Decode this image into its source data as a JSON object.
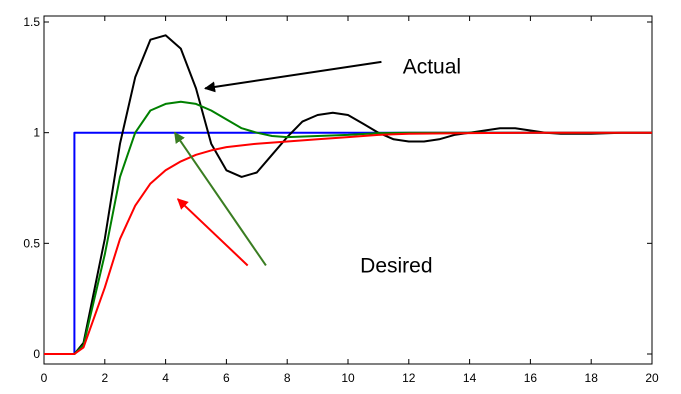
{
  "chart_data": {
    "type": "line",
    "xlim": [
      0,
      20
    ],
    "ylim": [
      0,
      1.5
    ],
    "grid": false,
    "x_ticks": [
      "0",
      "2",
      "4",
      "6",
      "8",
      "10",
      "12",
      "14",
      "16",
      "18",
      "20"
    ],
    "y_ticks": [
      "0",
      "0.5",
      "1",
      "1.5"
    ],
    "series": [
      {
        "color": "#0000ff",
        "points": [
          [
            0,
            0
          ],
          [
            1,
            0
          ],
          [
            1,
            1
          ],
          [
            20,
            1
          ]
        ]
      },
      {
        "color": "#000000",
        "points": [
          [
            0,
            0
          ],
          [
            1,
            0
          ],
          [
            1.3,
            0.05
          ],
          [
            2,
            0.52
          ],
          [
            2.5,
            0.95
          ],
          [
            3,
            1.25
          ],
          [
            3.5,
            1.42
          ],
          [
            4,
            1.44
          ],
          [
            4.5,
            1.38
          ],
          [
            5,
            1.2
          ],
          [
            5.5,
            0.95
          ],
          [
            6,
            0.83
          ],
          [
            6.5,
            0.8
          ],
          [
            7,
            0.82
          ],
          [
            7.5,
            0.9
          ],
          [
            8,
            0.98
          ],
          [
            8.5,
            1.05
          ],
          [
            9,
            1.08
          ],
          [
            9.5,
            1.09
          ],
          [
            10,
            1.08
          ],
          [
            10.5,
            1.04
          ],
          [
            11,
            1.0
          ],
          [
            11.5,
            0.97
          ],
          [
            12,
            0.96
          ],
          [
            12.5,
            0.96
          ],
          [
            13,
            0.97
          ],
          [
            13.5,
            0.99
          ],
          [
            14,
            1.0
          ],
          [
            14.5,
            1.01
          ],
          [
            15,
            1.02
          ],
          [
            15.5,
            1.02
          ],
          [
            16,
            1.01
          ],
          [
            16.5,
            1.0
          ],
          [
            17,
            0.995
          ],
          [
            18,
            0.995
          ],
          [
            19,
            1.0
          ],
          [
            20,
            1.0
          ]
        ]
      },
      {
        "color": "#008000",
        "points": [
          [
            0,
            0
          ],
          [
            1,
            0
          ],
          [
            1.3,
            0.04
          ],
          [
            2,
            0.45
          ],
          [
            2.5,
            0.8
          ],
          [
            3,
            1.0
          ],
          [
            3.5,
            1.1
          ],
          [
            4,
            1.13
          ],
          [
            4.5,
            1.14
          ],
          [
            5,
            1.13
          ],
          [
            5.5,
            1.1
          ],
          [
            6,
            1.06
          ],
          [
            6.5,
            1.02
          ],
          [
            7,
            1.0
          ],
          [
            7.5,
            0.985
          ],
          [
            8,
            0.98
          ],
          [
            9,
            0.985
          ],
          [
            10,
            0.99
          ],
          [
            11,
            0.998
          ],
          [
            12,
            1.0
          ],
          [
            14,
            1.0
          ],
          [
            16,
            1.0
          ],
          [
            18,
            1.0
          ],
          [
            20,
            1.0
          ]
        ]
      },
      {
        "color": "#ff0000",
        "points": [
          [
            0,
            0
          ],
          [
            1,
            0
          ],
          [
            1.3,
            0.03
          ],
          [
            2,
            0.3
          ],
          [
            2.5,
            0.52
          ],
          [
            3,
            0.67
          ],
          [
            3.5,
            0.77
          ],
          [
            4,
            0.83
          ],
          [
            4.5,
            0.87
          ],
          [
            5,
            0.9
          ],
          [
            5.5,
            0.92
          ],
          [
            6,
            0.935
          ],
          [
            7,
            0.95
          ],
          [
            8,
            0.96
          ],
          [
            9,
            0.97
          ],
          [
            10,
            0.98
          ],
          [
            11,
            0.99
          ],
          [
            12,
            0.995
          ],
          [
            14,
            0.998
          ],
          [
            16,
            1.0
          ],
          [
            18,
            1.0
          ],
          [
            20,
            1.0
          ]
        ]
      }
    ],
    "annotations": [
      {
        "text": "Actual",
        "text_at": [
          11.8,
          1.3
        ],
        "arrows": [
          {
            "color": "#000000",
            "from": [
              11.1,
              1.32
            ],
            "to": [
              5.3,
              1.2
            ]
          }
        ]
      },
      {
        "text": "Desired",
        "text_at": [
          10.4,
          0.4
        ],
        "arrows": [
          {
            "color": "#3a7d22",
            "from": [
              7.3,
              0.4
            ],
            "to": [
              4.3,
              1.0
            ]
          },
          {
            "color": "#ff0000",
            "from": [
              6.7,
              0.4
            ],
            "to": [
              4.4,
              0.7
            ]
          }
        ]
      }
    ]
  }
}
